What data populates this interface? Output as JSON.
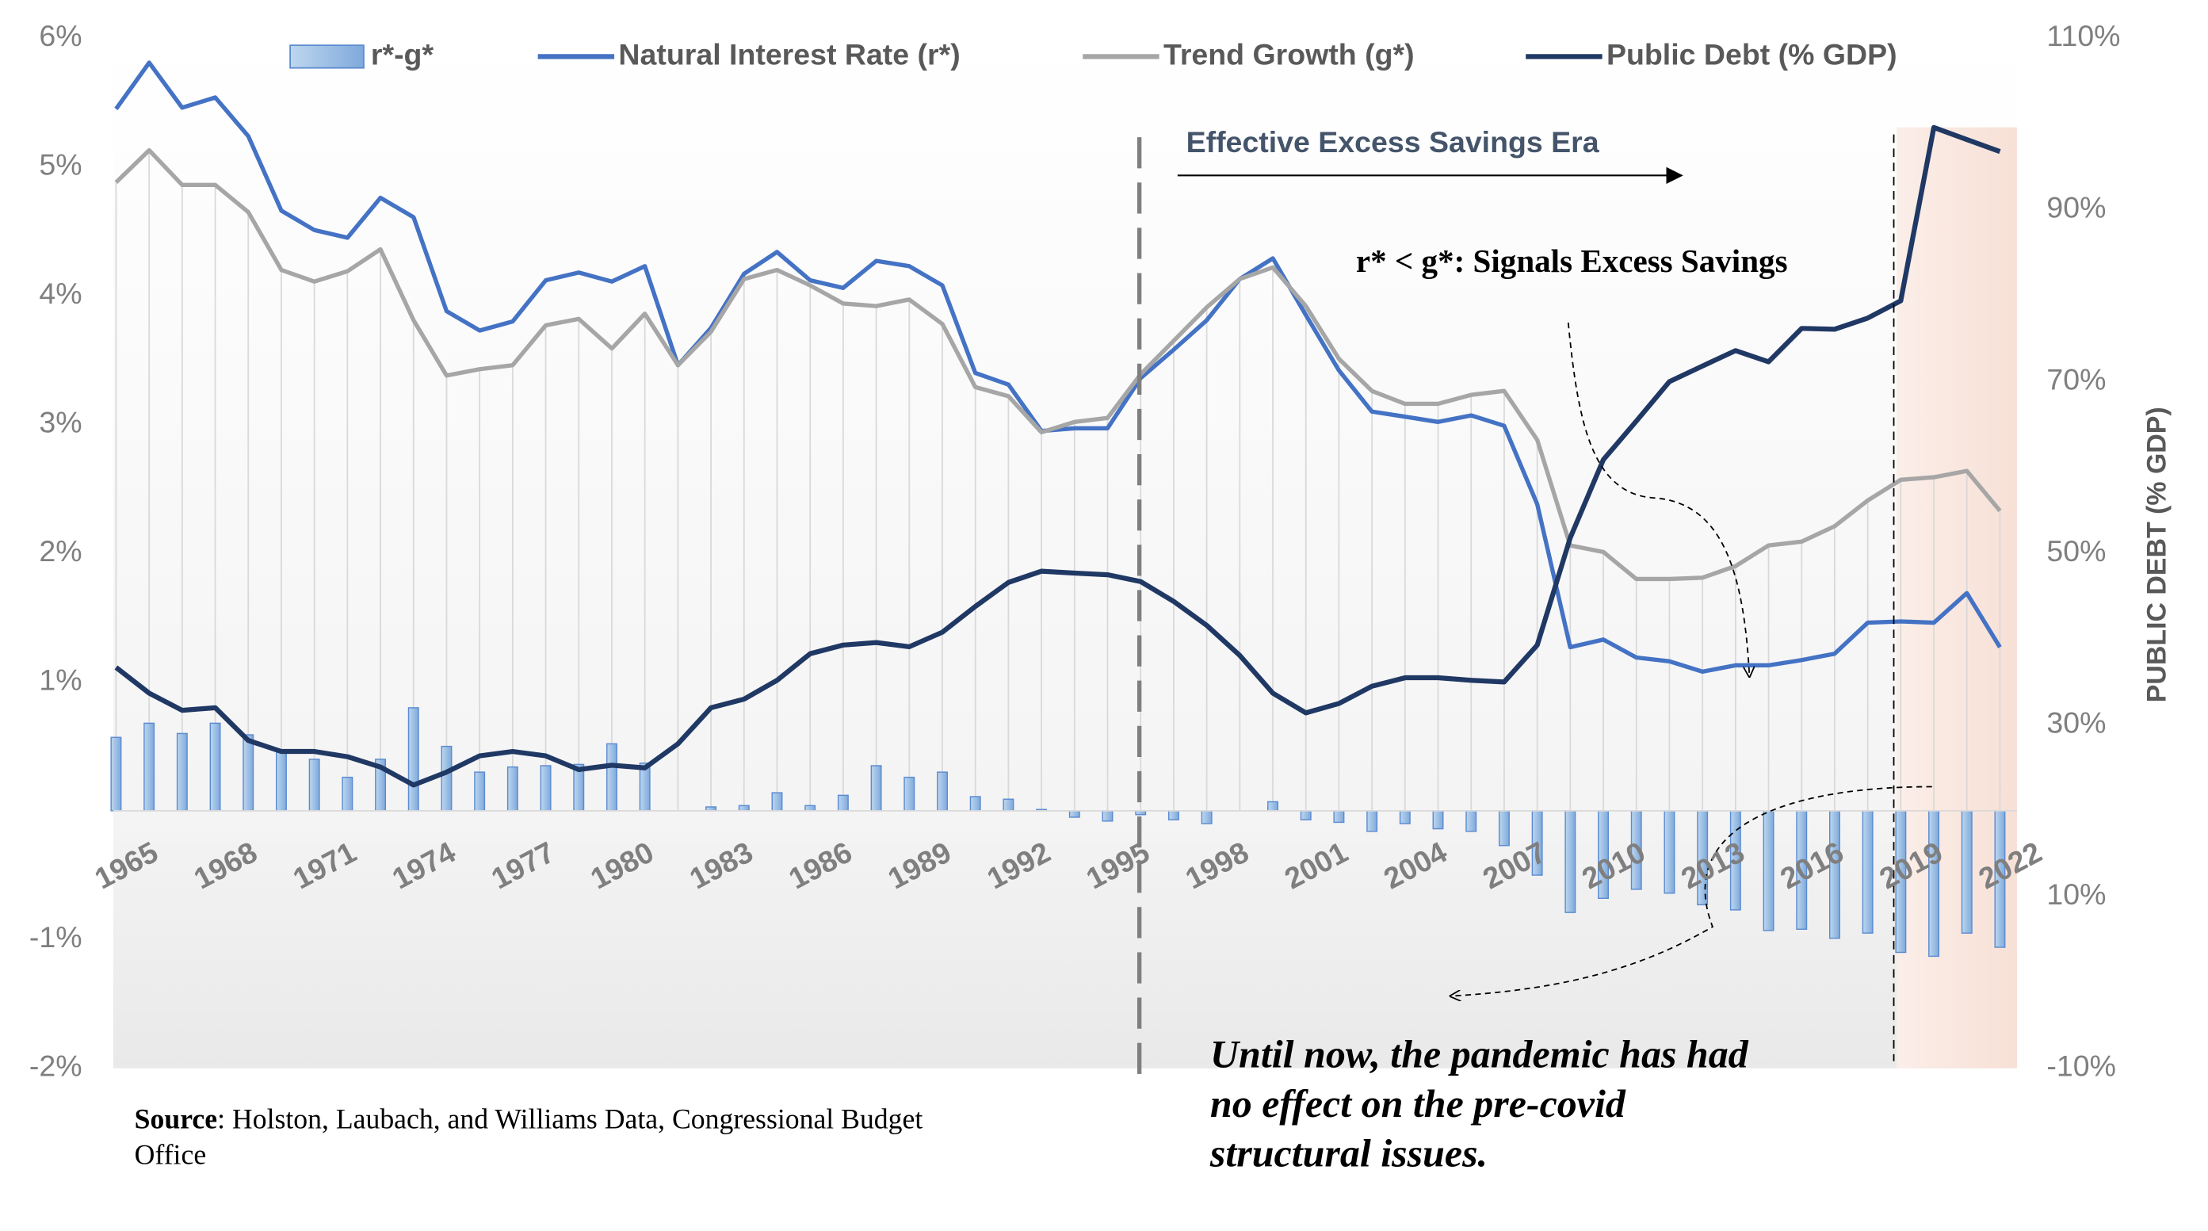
{
  "chart_data": {
    "type": "combo",
    "categories": [
      "1965",
      null,
      null,
      "1968",
      null,
      null,
      "1971",
      null,
      null,
      "1974",
      null,
      null,
      "1977",
      null,
      null,
      "1980",
      null,
      null,
      "1983",
      null,
      null,
      "1986",
      null,
      null,
      "1989",
      null,
      null,
      "1992",
      null,
      null,
      "1995",
      null,
      null,
      "1998",
      null,
      null,
      "2001",
      null,
      null,
      "2004",
      null,
      null,
      "2007",
      null,
      null,
      "2010",
      null,
      null,
      "2013",
      null,
      null,
      "2016",
      null,
      null,
      "2019",
      null,
      null,
      "2022"
    ],
    "series": [
      {
        "name": "r*-g*",
        "type": "bar",
        "color": "#9dc3e6",
        "values": [
          0.57,
          0.68,
          0.6,
          0.68,
          0.59,
          0.46,
          0.4,
          0.26,
          0.4,
          0.8,
          0.5,
          0.3,
          0.34,
          0.35,
          0.36,
          0.52,
          0.37,
          0,
          0.03,
          0.04,
          0.14,
          0.04,
          0.12,
          0.35,
          0.26,
          0.3,
          0.11,
          0.09,
          0.01,
          -0.05,
          -0.08,
          -0.03,
          -0.07,
          -0.1,
          0,
          0.07,
          -0.07,
          -0.09,
          -0.16,
          -0.1,
          -0.14,
          -0.16,
          -0.27,
          -0.5,
          -0.79,
          -0.68,
          -0.61,
          -0.64,
          -0.73,
          -0.77,
          -0.93,
          -0.92,
          -0.99,
          -0.95,
          -1.1,
          -1.13,
          -0.95,
          -1.06
        ]
      },
      {
        "name": "Natural Interest Rate (r*)",
        "type": "line",
        "color": "#4472c4",
        "values": [
          5.45,
          5.81,
          5.46,
          5.54,
          5.24,
          4.66,
          4.51,
          4.45,
          4.76,
          4.61,
          3.88,
          3.73,
          3.8,
          4.12,
          4.18,
          4.11,
          4.23,
          3.46,
          3.75,
          4.17,
          4.34,
          4.12,
          4.06,
          4.27,
          4.23,
          4.08,
          3.4,
          3.31,
          2.95,
          2.97,
          2.97,
          3.36,
          3.58,
          3.81,
          4.13,
          4.29,
          3.85,
          3.42,
          3.1,
          3.06,
          3.02,
          3.07,
          2.99,
          2.38,
          1.27,
          1.33,
          1.19,
          1.16,
          1.08,
          1.13,
          1.13,
          1.17,
          1.22,
          1.46,
          1.47,
          1.46,
          1.69,
          1.27
        ]
      },
      {
        "name": "Trend Growth (g*)",
        "type": "line",
        "color": "#a6a6a6",
        "values": [
          4.88,
          5.13,
          4.86,
          4.86,
          4.65,
          4.2,
          4.11,
          4.19,
          4.36,
          3.81,
          3.38,
          3.43,
          3.46,
          3.77,
          3.82,
          3.59,
          3.86,
          3.46,
          3.72,
          4.13,
          4.2,
          4.08,
          3.94,
          3.92,
          3.97,
          3.78,
          3.29,
          3.22,
          2.94,
          3.02,
          3.05,
          3.39,
          3.65,
          3.91,
          4.13,
          4.22,
          3.92,
          3.51,
          3.26,
          3.16,
          3.16,
          3.23,
          3.26,
          2.88,
          2.06,
          2.01,
          1.8,
          1.8,
          1.81,
          1.9,
          2.06,
          2.09,
          2.21,
          2.41,
          2.57,
          2.59,
          2.64,
          2.33
        ]
      },
      {
        "name": "Public Debt (% GDP)",
        "type": "line",
        "axis": "y2",
        "color": "#203864",
        "values": [
          36.7,
          33.7,
          31.7,
          32.0,
          28.2,
          26.9,
          26.9,
          26.3,
          25.1,
          23.0,
          24.5,
          26.4,
          26.9,
          26.4,
          24.8,
          25.3,
          25.0,
          27.8,
          32.0,
          33.0,
          35.2,
          38.3,
          39.3,
          39.6,
          39.1,
          40.8,
          43.8,
          46.6,
          47.9,
          47.7,
          47.5,
          46.7,
          44.4,
          41.6,
          38.1,
          33.7,
          31.4,
          32.5,
          34.5,
          35.5,
          35.5,
          35.2,
          35.0,
          39.3,
          51.8,
          60.9,
          65.4,
          70.0,
          71.8,
          73.6,
          72.3,
          76.2,
          76.1,
          77.4,
          79.4,
          99.6,
          98.2,
          96.8
        ]
      }
    ],
    "ylim": [
      -2,
      6
    ],
    "yticks": [
      {
        "value": -2,
        "label": "-2%"
      },
      {
        "value": -1,
        "label": "-1%"
      },
      {
        "value": 1,
        "label": "1%"
      },
      {
        "value": 2,
        "label": "2%"
      },
      {
        "value": 3,
        "label": "3%"
      },
      {
        "value": 4,
        "label": "4%"
      },
      {
        "value": 5,
        "label": "5%"
      },
      {
        "value": 6,
        "label": "6%"
      }
    ],
    "y2lim": [
      -10,
      110
    ],
    "y2ticks": [
      {
        "value": -10,
        "label": "-10%"
      },
      {
        "value": 10,
        "label": "10%"
      },
      {
        "value": 30,
        "label": "30%"
      },
      {
        "value": 50,
        "label": "50%"
      },
      {
        "value": 70,
        "label": "70%"
      },
      {
        "value": 90,
        "label": "90%"
      },
      {
        "value": 110,
        "label": "110%"
      }
    ],
    "y2label": "PUBLIC DEBT (% GDP)",
    "legend": "top",
    "annotations": {
      "era": "Effective Excess Savings Era",
      "signal": "r* < g*: Signals Excess Savings",
      "pandemic": [
        "Until now, the pandemic has had",
        "no effect on the pre-covid",
        "structural issues."
      ]
    },
    "source": {
      "label": "Source",
      "lines": [
        ": Holston, Laubach, and Williams Data, Congressional Budget",
        "Office"
      ]
    }
  }
}
